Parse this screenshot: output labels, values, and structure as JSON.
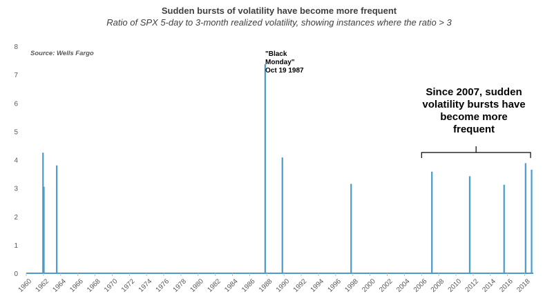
{
  "chart_data": {
    "type": "bar",
    "title": "Sudden bursts of volatility have become more frequent",
    "subtitle": "Ratio of SPX 5-day to 3-month realized volatility, showing instances where the ratio > 3",
    "source": "Source: Wells Fargo",
    "xlabel": "",
    "ylabel": "",
    "xlim": [
      1960,
      2019
    ],
    "ylim": [
      0,
      8
    ],
    "y_ticks": [
      0,
      1,
      2,
      3,
      4,
      5,
      6,
      7,
      8
    ],
    "x_ticks": [
      "1960",
      "1962",
      "1964",
      "1966",
      "1968",
      "1970",
      "1972",
      "1974",
      "1976",
      "1978",
      "1980",
      "1982",
      "1984",
      "1986",
      "1988",
      "1990",
      "1992",
      "1994",
      "1996",
      "1998",
      "2000",
      "2002",
      "2004",
      "2006",
      "2008",
      "2010",
      "2012",
      "2014",
      "2016",
      "2018"
    ],
    "grid": false,
    "legend": "none",
    "bar_color": "#4a9bc9",
    "series": [
      {
        "points": [
          {
            "x": 1961.95,
            "y": 4.25
          },
          {
            "x": 1962.05,
            "y": 3.05
          },
          {
            "x": 1963.55,
            "y": 3.8
          },
          {
            "x": 1987.8,
            "y": 7.37
          },
          {
            "x": 1989.8,
            "y": 4.08
          },
          {
            "x": 1997.8,
            "y": 3.15
          },
          {
            "x": 2007.2,
            "y": 3.58
          },
          {
            "x": 2011.6,
            "y": 3.42
          },
          {
            "x": 2015.6,
            "y": 3.12
          },
          {
            "x": 2018.1,
            "y": 3.88
          },
          {
            "x": 2018.8,
            "y": 3.65
          }
        ]
      }
    ],
    "annotations": {
      "black_monday": {
        "lines": [
          "\"Black",
          "Monday\"",
          "Oct 19 1987"
        ]
      },
      "since_2007": {
        "lines": [
          "Since 2007, sudden",
          "volatility bursts have",
          "become more",
          "frequent"
        ],
        "bracket_range": [
          2006,
          2019
        ]
      }
    }
  }
}
